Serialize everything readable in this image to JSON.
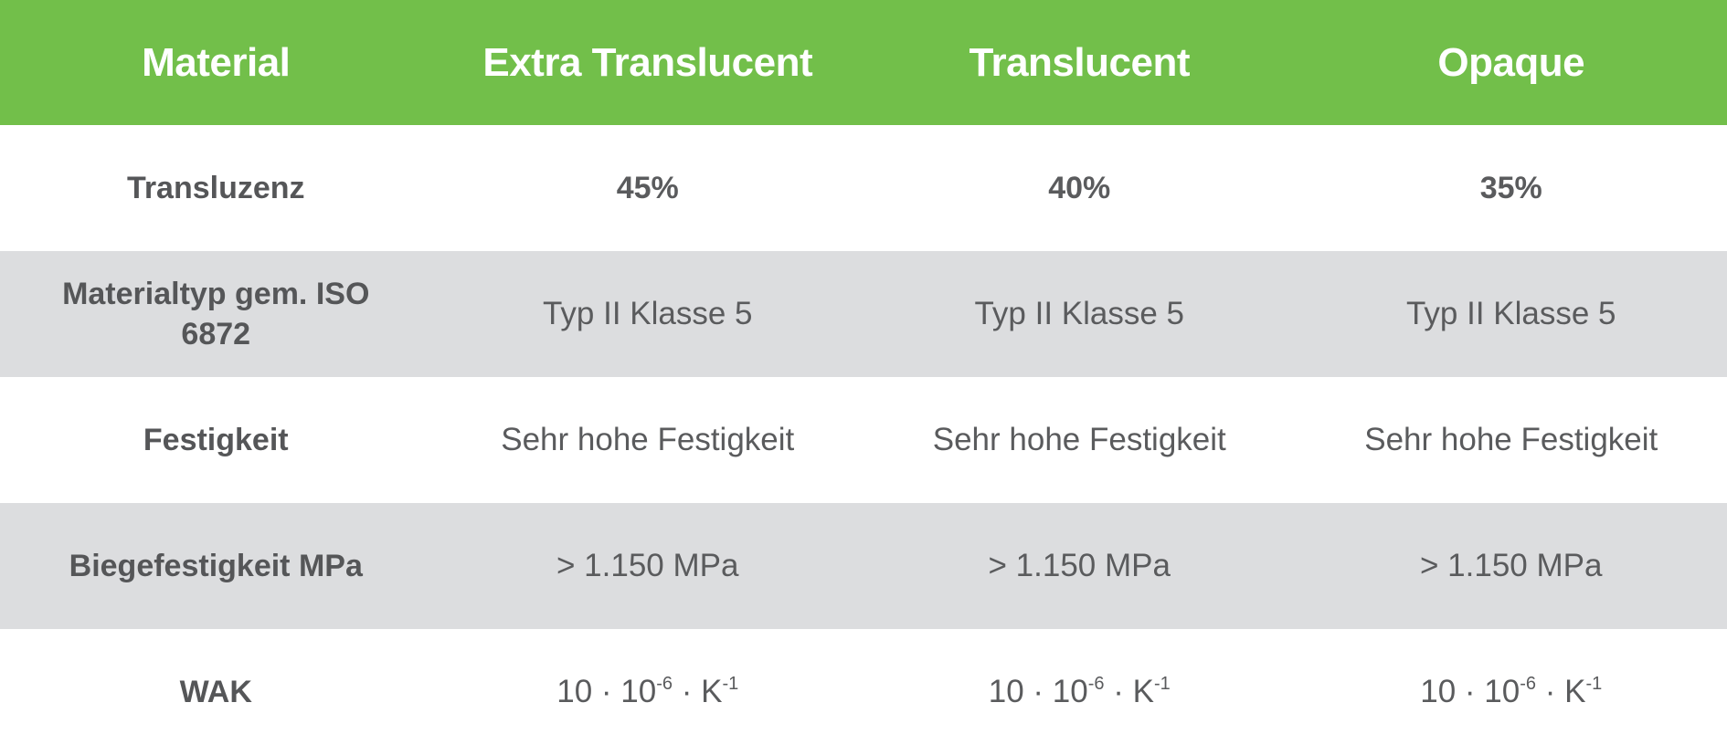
{
  "colors": {
    "header_bg": "#72bf4a",
    "stripe_bg": "#dcdddf",
    "text": "#555658"
  },
  "table": {
    "headers": [
      "Material",
      "Extra Translucent",
      "Translucent",
      "Opaque"
    ],
    "rows": [
      {
        "label": "Transluzenz",
        "values": [
          "45%",
          "40%",
          "35%"
        ],
        "bold": true
      },
      {
        "label": "Materialtyp gem. ISO 6872",
        "values": [
          "Typ II Klasse 5",
          "Typ II Klasse 5",
          "Typ II Klasse 5"
        ]
      },
      {
        "label": "Festigkeit",
        "values": [
          "Sehr hohe Festigkeit",
          "Sehr hohe Festigkeit",
          "Sehr hohe Festigkeit"
        ]
      },
      {
        "label": "Biegefestigkeit MPa",
        "values": [
          "> 1.150 MPa",
          "> 1.150 MPa",
          "> 1.150 MPa"
        ]
      },
      {
        "label": "WAK",
        "values": [
          {
            "base": "10 · 10",
            "exp1": "-6",
            "mid": " · K",
            "exp2": "-1"
          },
          {
            "base": "10 · 10",
            "exp1": "-6",
            "mid": " · K",
            "exp2": "-1"
          },
          {
            "base": "10 · 10",
            "exp1": "-6",
            "mid": " · K",
            "exp2": "-1"
          }
        ]
      }
    ]
  }
}
